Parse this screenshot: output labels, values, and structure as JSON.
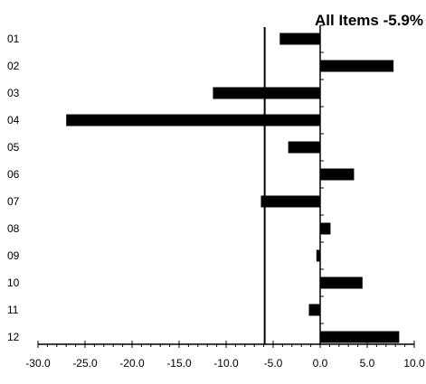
{
  "chart_data": {
    "type": "bar",
    "orientation": "horizontal",
    "title": "All Items -5.9%",
    "xlabel": "",
    "ylabel": "",
    "categories": [
      "01",
      "02",
      "03",
      "04",
      "05",
      "06",
      "07",
      "08",
      "09",
      "10",
      "11",
      "12"
    ],
    "values": [
      -4.3,
      7.8,
      -11.4,
      -27.0,
      -3.4,
      3.6,
      -6.3,
      1.1,
      -0.4,
      4.5,
      -1.2,
      8.4
    ],
    "reference_line": {
      "value": -5.9
    },
    "xlim": [
      -30.0,
      10.0
    ],
    "x_ticks": [
      "-30.0",
      "-25.0",
      "-20.0",
      "-15.0",
      "-10.0",
      "-5.0",
      "0.0",
      "5.0",
      "10.0"
    ],
    "grid": false,
    "legend": "none",
    "bar_color": "#000000"
  }
}
